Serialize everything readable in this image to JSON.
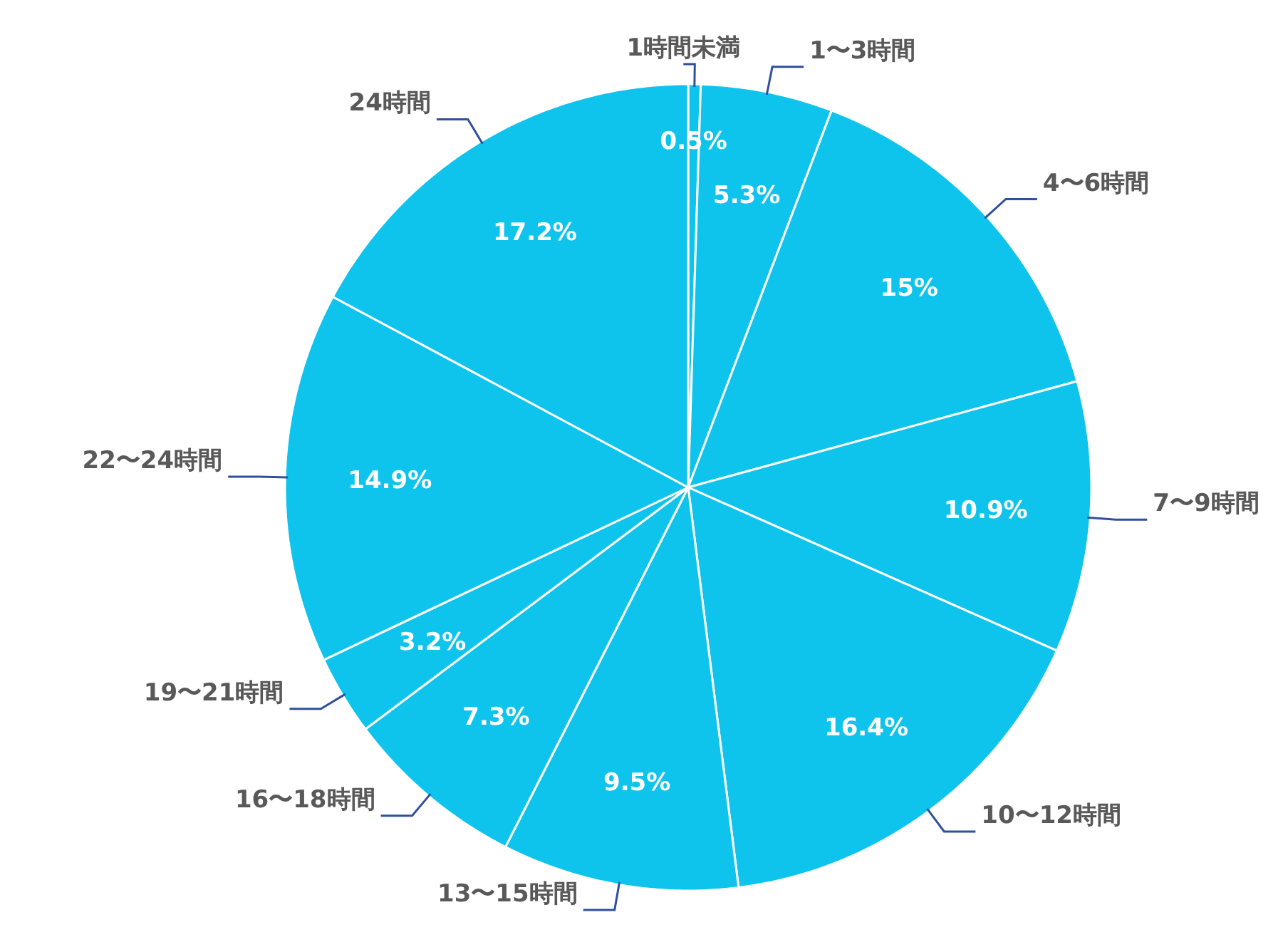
{
  "chart_data": {
    "type": "pie",
    "categories": [
      "1時間未満",
      "1〜3時間",
      "4〜6時間",
      "7〜9時間",
      "10〜12時間",
      "13〜15時間",
      "16〜18時間",
      "19〜21時間",
      "22〜24時間",
      "24時間"
    ],
    "values": [
      0.5,
      5.3,
      15,
      10.9,
      16.4,
      9.5,
      7.3,
      3.2,
      14.9,
      17.2
    ],
    "colors": [
      "#0fc4ec",
      "#0fc4ec",
      "#0fc4ec",
      "#0fc4ec",
      "#0fc4ec",
      "#0fc4ec",
      "#0fc4ec",
      "#0fc4ec",
      "#0fc4ec",
      "#0fc4ec"
    ],
    "value_labels": [
      "0.5%",
      "5.3%",
      "15%",
      "10.9%",
      "16.4%",
      "9.5%",
      "7.3%",
      "3.2%",
      "14.9%",
      "17.2%"
    ]
  }
}
